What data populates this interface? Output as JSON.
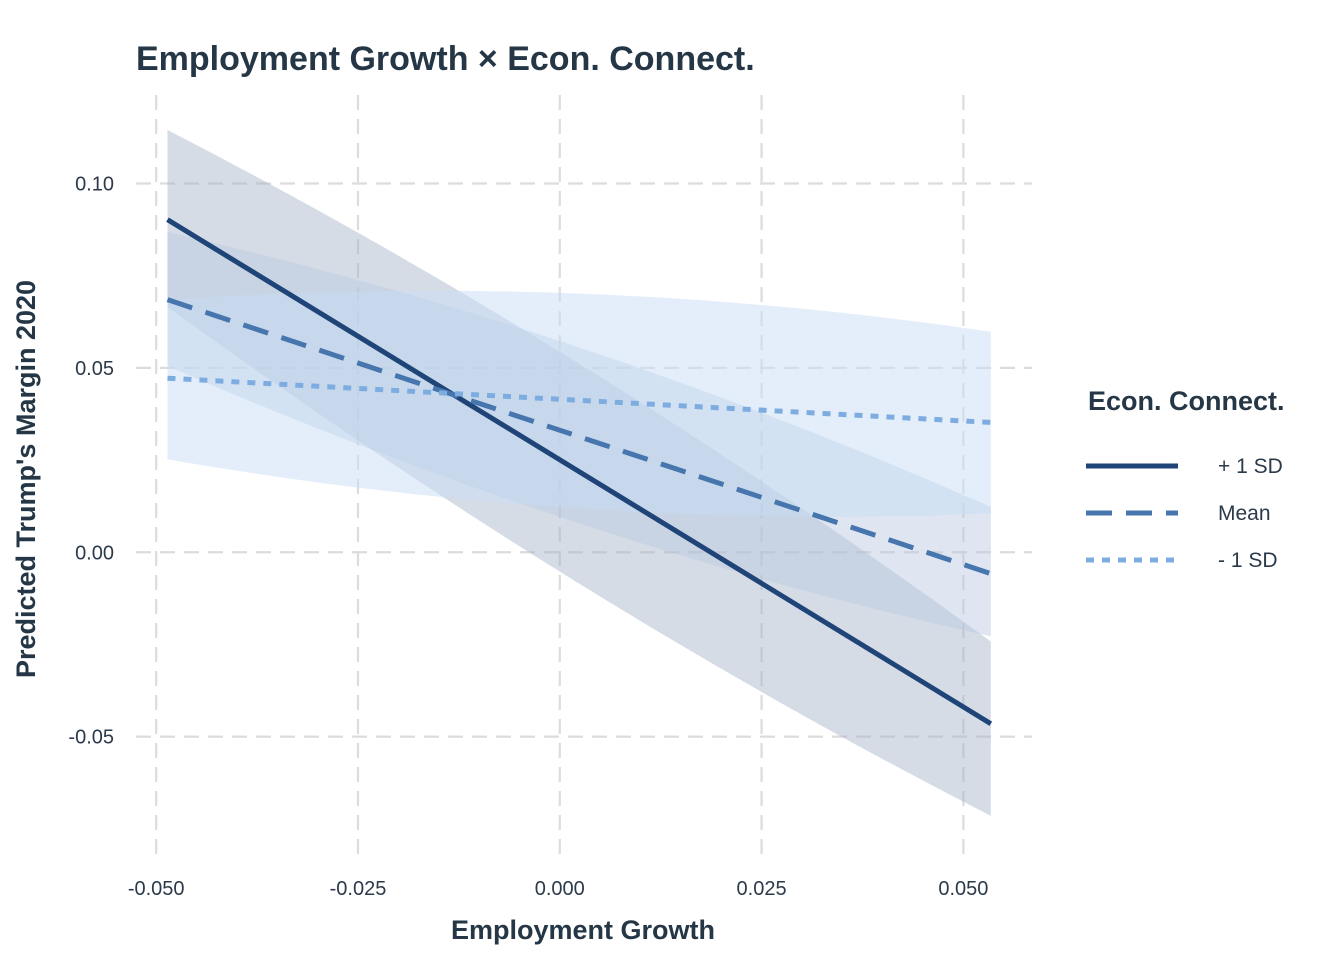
{
  "chart_data": {
    "type": "line",
    "title": "Employment Growth × Econ. Connect.",
    "xlabel": "Employment Growth",
    "ylabel": "Predicted Trump's Margin 2020",
    "xlim": [
      -0.0525,
      0.0585
    ],
    "ylim": [
      -0.084,
      0.124
    ],
    "x_ticks": [
      -0.05,
      -0.025,
      0.0,
      0.025,
      0.05
    ],
    "x_tick_labels": [
      "-0.050",
      "-0.025",
      "0.000",
      "0.025",
      "0.050"
    ],
    "y_ticks": [
      -0.05,
      0.0,
      0.05,
      0.1
    ],
    "y_tick_labels": [
      "-0.05",
      "0.00",
      "0.05",
      "0.10"
    ],
    "grid": true,
    "legend": {
      "title": "Econ. Connect.",
      "position": "right"
    },
    "x": [
      -0.0486,
      0.0534
    ],
    "series": [
      {
        "name": "+ 1 SD",
        "values": [
          0.0902,
          -0.0465
        ],
        "ci_lower": [
          0.0665,
          -0.0715
        ],
        "ci_upper": [
          0.1145,
          -0.0242
        ],
        "color": "#1f4478",
        "dash": "solid",
        "band_color": "#a3b1c8",
        "band_opacity": 0.45
      },
      {
        "name": "Mean",
        "values": [
          0.0685,
          -0.0058
        ],
        "ci_lower": [
          0.0505,
          -0.0228
        ],
        "ci_upper": [
          0.0868,
          0.0123
        ],
        "color": "#4676ad",
        "dash": "dashed",
        "band_color": "#b7c7df",
        "band_opacity": 0.45
      },
      {
        "name": "- 1 SD",
        "values": [
          0.0472,
          0.0352
        ],
        "ci_lower": [
          0.0252,
          0.0105
        ],
        "ci_upper": [
          0.0685,
          0.0598
        ],
        "color": "#7dade0",
        "dash": "dotted",
        "band_color": "#c7ddf5",
        "band_opacity": 0.5
      }
    ]
  }
}
